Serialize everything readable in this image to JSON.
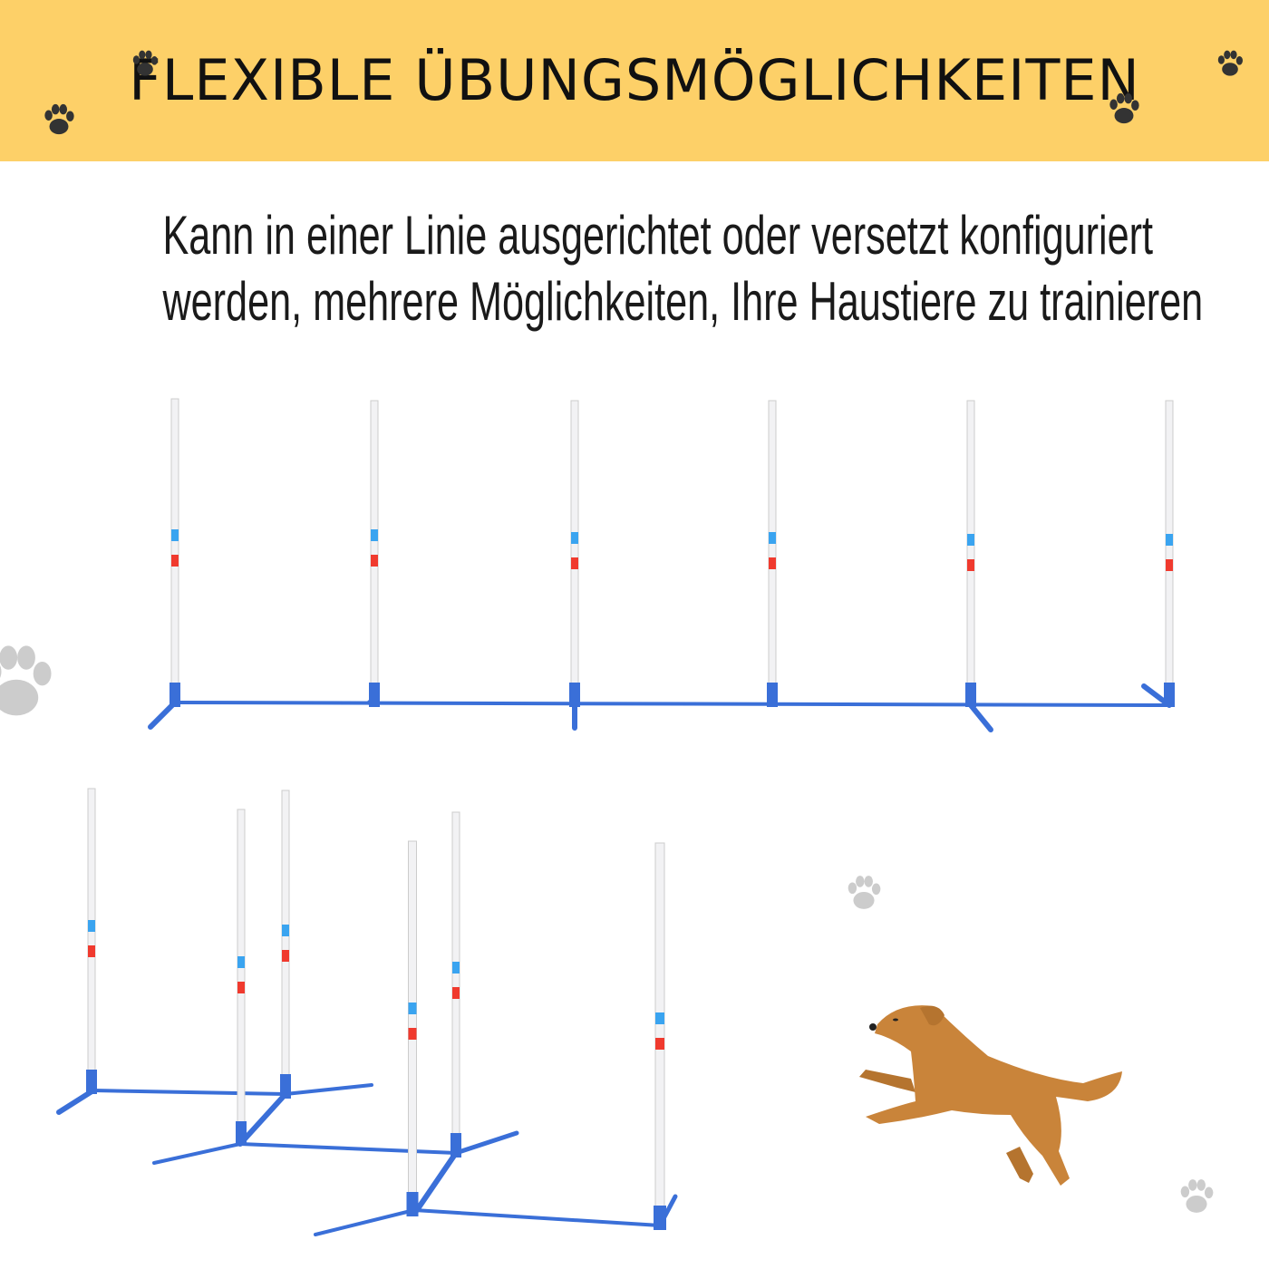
{
  "header": {
    "title": "FLEXIBLE ÜBUNGSMÖGLICHKEITEN"
  },
  "description": {
    "line1": "Kann in einer Linie ausgerichtet oder versetzt konfiguriert",
    "line2": "werden, mehrere Möglichkeiten, Ihre Haustiere zu trainieren"
  },
  "colors": {
    "banner": "#FDD068",
    "pole": "#F2F2F4",
    "base": "#3A6FD8",
    "stripe_blue": "#3AA4F0",
    "stripe_red": "#F03A2E",
    "dog": "#C9843A",
    "paw_dark": "#333333",
    "paw_light": "#CFCFCF"
  }
}
